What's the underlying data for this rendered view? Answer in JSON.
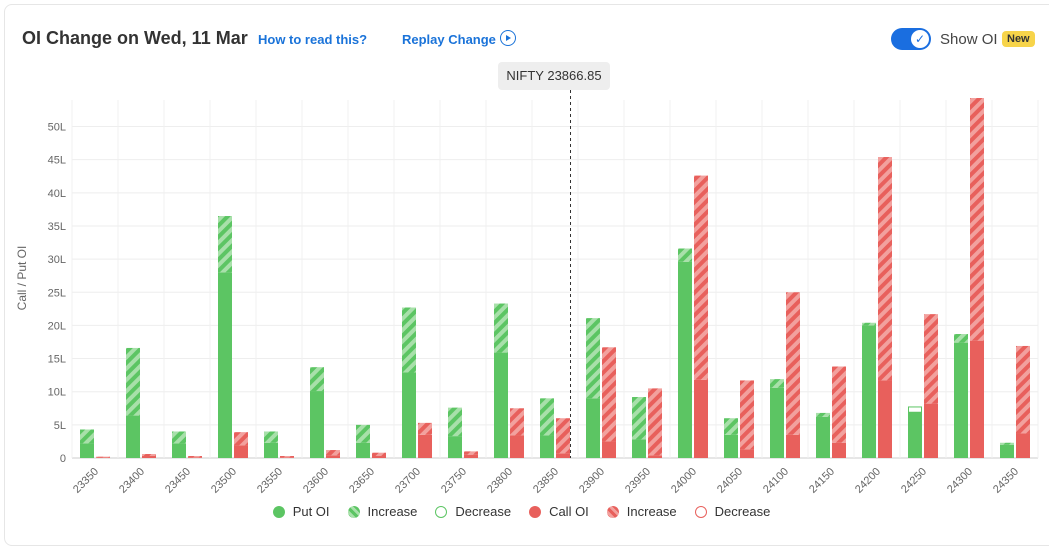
{
  "header": {
    "title": "OI Change on Wed, 11 Mar",
    "how_to_read": "How to read this?",
    "replay": "Replay Change",
    "show_oi": "Show OI",
    "badge": "New"
  },
  "spot_label": "NIFTY 23866.85",
  "colors": {
    "put": "#5cc563",
    "put_light": "#a8e0aa",
    "call": "#e8605c",
    "call_light": "#f2a19e",
    "accent": "#1a73d9"
  },
  "legend": [
    {
      "label": "Put OI",
      "style": "put-solid"
    },
    {
      "label": "Increase",
      "style": "put-hatch"
    },
    {
      "label": "Decrease",
      "style": "put-outline"
    },
    {
      "label": "Call OI",
      "style": "call-solid"
    },
    {
      "label": "Increase",
      "style": "call-hatch"
    },
    {
      "label": "Decrease",
      "style": "call-outline"
    }
  ],
  "chart_data": {
    "type": "bar",
    "ylabel": "Call / Put OI",
    "ylim": [
      0,
      54
    ],
    "yticks": [
      0,
      5,
      10,
      15,
      20,
      25,
      30,
      35,
      40,
      45,
      50
    ],
    "ytick_labels": [
      "0",
      "5L",
      "10L",
      "15L",
      "20L",
      "25L",
      "30L",
      "35L",
      "40L",
      "45L",
      "50L"
    ],
    "spot_value": 23866.85,
    "categories": [
      "23350",
      "23400",
      "23450",
      "23500",
      "23550",
      "23600",
      "23650",
      "23700",
      "23750",
      "23800",
      "23850",
      "23900",
      "23950",
      "24000",
      "24050",
      "24100",
      "24150",
      "24200",
      "24250",
      "24300",
      "24350"
    ],
    "series": [
      {
        "name": "Put OI",
        "base": [
          2.2,
          6.4,
          2.2,
          28.0,
          2.3,
          10.1,
          2.3,
          12.9,
          3.3,
          15.9,
          3.4,
          9.0,
          2.8,
          29.6,
          3.5,
          10.6,
          6.2,
          20.0,
          6.9,
          17.4,
          2.0
        ],
        "increase": [
          2.1,
          10.2,
          1.8,
          8.5,
          1.7,
          3.6,
          2.7,
          9.8,
          4.3,
          7.4,
          5.6,
          12.1,
          6.4,
          2.0,
          2.5,
          1.3,
          0.6,
          0.4,
          0,
          1.3,
          0.3
        ],
        "decrease": [
          0,
          0,
          0,
          0,
          0,
          0,
          0,
          0,
          0,
          0,
          0,
          0,
          0,
          0,
          0,
          0,
          0,
          0,
          0.8,
          0,
          0
        ]
      },
      {
        "name": "Call OI",
        "base": [
          0.1,
          0.3,
          0.1,
          1.9,
          0.1,
          0.4,
          0.3,
          3.5,
          0.5,
          3.4,
          0.7,
          2.5,
          0.4,
          11.8,
          1.3,
          3.5,
          2.3,
          11.7,
          8.2,
          17.7,
          3.7
        ],
        "increase": [
          0.1,
          0.3,
          0.2,
          2.0,
          0.2,
          0.8,
          0.5,
          1.8,
          0.5,
          4.1,
          5.3,
          14.2,
          10.1,
          30.8,
          10.4,
          21.5,
          11.5,
          33.7,
          13.5,
          36.6,
          13.2
        ],
        "decrease": [
          0,
          0,
          0,
          0,
          0,
          0,
          0,
          0,
          0,
          0,
          0,
          0,
          0,
          0,
          0,
          0,
          0,
          0,
          0,
          0,
          0
        ]
      }
    ]
  }
}
